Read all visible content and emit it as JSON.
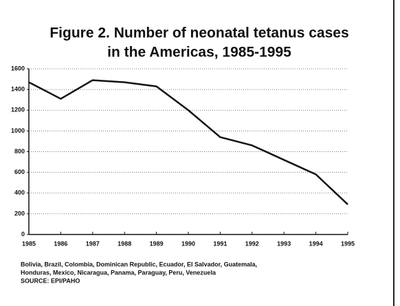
{
  "chart_data": {
    "type": "line",
    "title": [
      "Figure 2.   Number of neonatal tetanus cases",
      "in the Americas,  1985-1995"
    ],
    "x": [
      1985,
      1986,
      1987,
      1988,
      1989,
      1990,
      1991,
      1992,
      1993,
      1994,
      1995
    ],
    "series": [
      {
        "color": "#111111",
        "values": [
          1470,
          1310,
          1490,
          1470,
          1430,
          1200,
          940,
          860,
          720,
          580,
          290
        ]
      }
    ],
    "xlim": [
      1985,
      1995
    ],
    "xticks": [
      1985,
      1986,
      1987,
      1988,
      1989,
      1990,
      1991,
      1992,
      1993,
      1994,
      1995
    ],
    "ylim": [
      0,
      1600
    ],
    "yticks": [
      0,
      200,
      400,
      600,
      800,
      1000,
      1200,
      1400,
      1600
    ],
    "grid": true,
    "notes": [
      "Bolivia, Brazil, Colombia, Dominican Republic, Ecuador, El Salvador, Guatemala,",
      "Honduras, Mexico, Nicaragua, Panama, Paraguay, Peru, Venezuela",
      "SOURCE: EPI/PAHO"
    ]
  }
}
